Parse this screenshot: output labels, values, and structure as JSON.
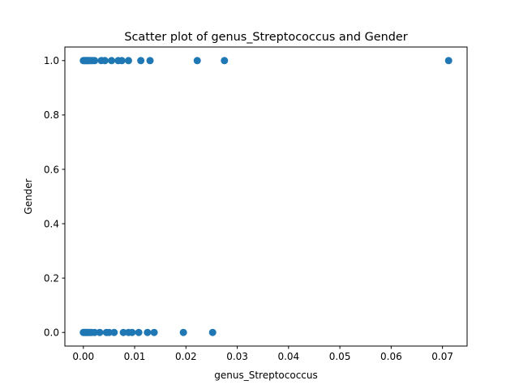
{
  "chart_data": {
    "type": "scatter",
    "title": "Scatter plot of genus_Streptococcus and Gender",
    "xlabel": "genus_Streptococcus",
    "ylabel": "Gender",
    "xlim": [
      -0.0036,
      0.0748
    ],
    "ylim": [
      -0.05,
      1.05
    ],
    "xticks": [
      0.0,
      0.01,
      0.02,
      0.03,
      0.04,
      0.05,
      0.06,
      0.07
    ],
    "xtick_labels": [
      "0.00",
      "0.01",
      "0.02",
      "0.03",
      "0.04",
      "0.05",
      "0.06",
      "0.07"
    ],
    "yticks": [
      0.0,
      0.2,
      0.4,
      0.6,
      0.8,
      1.0
    ],
    "ytick_labels": [
      "0.0",
      "0.2",
      "0.4",
      "0.6",
      "0.8",
      "1.0"
    ],
    "grid": false,
    "marker_color": "#1f77b4",
    "series": [
      {
        "x": [
          0.0,
          0.0002,
          0.0004,
          0.0006,
          0.0008,
          0.001,
          0.0012,
          0.0015,
          0.0018,
          0.0022,
          0.0035,
          0.0042,
          0.0055,
          0.0068,
          0.0075,
          0.0088,
          0.0112,
          0.013,
          0.0222,
          0.0275,
          0.0712,
          0.0,
          0.0002,
          0.0004,
          0.0006,
          0.0008,
          0.001,
          0.0013,
          0.0016,
          0.0022,
          0.0032,
          0.0045,
          0.005,
          0.006,
          0.0078,
          0.0088,
          0.0095,
          0.0108,
          0.0125,
          0.0138,
          0.0195,
          0.0252
        ],
        "y": [
          1,
          1,
          1,
          1,
          1,
          1,
          1,
          1,
          1,
          1,
          1,
          1,
          1,
          1,
          1,
          1,
          1,
          1,
          1,
          1,
          1,
          0,
          0,
          0,
          0,
          0,
          0,
          0,
          0,
          0,
          0,
          0,
          0,
          0,
          0,
          0,
          0,
          0,
          0,
          0,
          0,
          0
        ]
      }
    ]
  }
}
